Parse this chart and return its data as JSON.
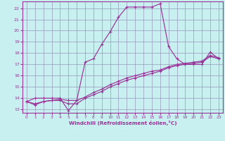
{
  "xlabel": "Windchill (Refroidissement éolien,°C)",
  "xlim": [
    -0.5,
    23.5
  ],
  "ylim": [
    12.7,
    22.6
  ],
  "xticks": [
    0,
    1,
    2,
    3,
    4,
    5,
    6,
    7,
    8,
    9,
    10,
    11,
    12,
    13,
    14,
    15,
    16,
    17,
    18,
    19,
    20,
    21,
    22,
    23
  ],
  "yticks": [
    13,
    14,
    15,
    16,
    17,
    18,
    19,
    20,
    21,
    22
  ],
  "bg_color": "#c8f0f0",
  "grid_color": "#9999bb",
  "line_color": "#993399",
  "line1_x": [
    0,
    1,
    2,
    3,
    4,
    5,
    6,
    7,
    8,
    9,
    10,
    11,
    12,
    13,
    14,
    15,
    16,
    17,
    18,
    19,
    20,
    21,
    22,
    23
  ],
  "line1_y": [
    13.7,
    14.0,
    14.0,
    14.0,
    14.0,
    12.9,
    13.8,
    17.2,
    17.5,
    18.8,
    19.9,
    21.2,
    22.1,
    22.1,
    22.1,
    22.1,
    22.4,
    18.6,
    17.5,
    17.0,
    17.0,
    17.0,
    18.1,
    17.5
  ],
  "line2_x": [
    0,
    1,
    2,
    3,
    4,
    5,
    6,
    7,
    8,
    9,
    10,
    11,
    12,
    13,
    14,
    15,
    16,
    17,
    18,
    19,
    20,
    21,
    22,
    23
  ],
  "line2_y": [
    13.7,
    13.4,
    13.7,
    13.8,
    13.8,
    13.5,
    13.5,
    14.0,
    14.3,
    14.6,
    15.0,
    15.3,
    15.6,
    15.8,
    16.0,
    16.2,
    16.4,
    16.7,
    16.9,
    17.0,
    17.1,
    17.2,
    17.7,
    17.5
  ],
  "line3_x": [
    0,
    1,
    2,
    3,
    4,
    5,
    6,
    7,
    8,
    9,
    10,
    11,
    12,
    13,
    14,
    15,
    16,
    17,
    18,
    19,
    20,
    21,
    22,
    23
  ],
  "line3_y": [
    13.7,
    13.5,
    13.7,
    13.8,
    13.9,
    13.8,
    13.8,
    14.1,
    14.5,
    14.8,
    15.2,
    15.5,
    15.8,
    16.0,
    16.2,
    16.4,
    16.5,
    16.8,
    17.0,
    17.1,
    17.2,
    17.3,
    17.8,
    17.6
  ]
}
